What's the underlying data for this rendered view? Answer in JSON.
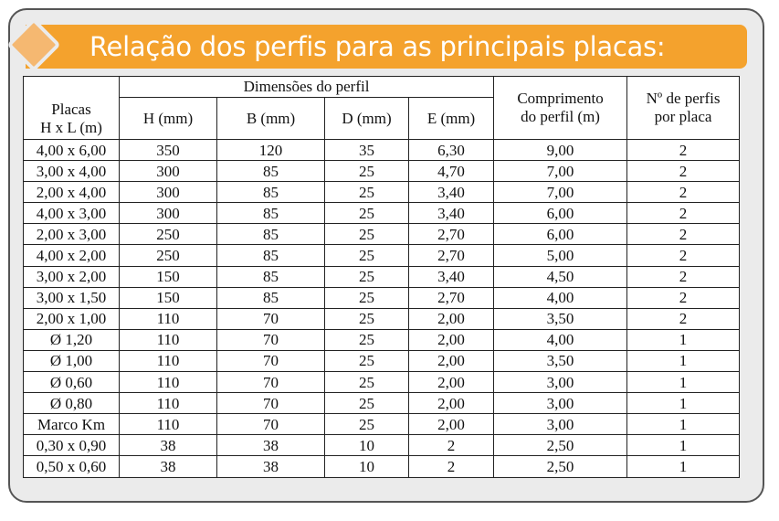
{
  "title": "Relação dos perfis para as principais placas:",
  "colors": {
    "banner": "#f4a22d",
    "diamond": "#f5b871",
    "card": "#ebebeb"
  },
  "icons": {
    "banner_mark": "diamond-icon"
  },
  "table": {
    "group_header": "Dimensões do perfil",
    "headers": {
      "placas_line1": "Placas",
      "placas_line2": "H x L (m)",
      "h": "H (mm)",
      "b": "B (mm)",
      "d": "D (mm)",
      "e": "E (mm)",
      "comprimento_line1": "Comprimento",
      "comprimento_line2": "do perfil (m)",
      "nperfis_line1": "Nº de perfis",
      "nperfis_line2": "por placa"
    },
    "rows": [
      [
        "4,00 x 6,00",
        "350",
        "120",
        "35",
        "6,30",
        "9,00",
        "2"
      ],
      [
        "3,00 x 4,00",
        "300",
        "85",
        "25",
        "4,70",
        "7,00",
        "2"
      ],
      [
        "2,00 x 4,00",
        "300",
        "85",
        "25",
        "3,40",
        "7,00",
        "2"
      ],
      [
        "4,00 x 3,00",
        "300",
        "85",
        "25",
        "3,40",
        "6,00",
        "2"
      ],
      [
        "2,00 x 3,00",
        "250",
        "85",
        "25",
        "2,70",
        "6,00",
        "2"
      ],
      [
        "4,00 x 2,00",
        "250",
        "85",
        "25",
        "2,70",
        "5,00",
        "2"
      ],
      [
        "3,00 x 2,00",
        "150",
        "85",
        "25",
        "3,40",
        "4,50",
        "2"
      ],
      [
        "3,00 x 1,50",
        "150",
        "85",
        "25",
        "2,70",
        "4,00",
        "2"
      ],
      [
        "2,00 x 1,00",
        "110",
        "70",
        "25",
        "2,00",
        "3,50",
        "2"
      ],
      [
        "Ø 1,20",
        "110",
        "70",
        "25",
        "2,00",
        "4,00",
        "1"
      ],
      [
        "Ø 1,00",
        "110",
        "70",
        "25",
        "2,00",
        "3,50",
        "1"
      ],
      [
        "Ø 0,60",
        "110",
        "70",
        "25",
        "2,00",
        "3,00",
        "1"
      ],
      [
        "Ø 0,80",
        "110",
        "70",
        "25",
        "2,00",
        "3,00",
        "1"
      ],
      [
        "Marco Km",
        "110",
        "70",
        "25",
        "2,00",
        "3,00",
        "1"
      ],
      [
        "0,30 x 0,90",
        "38",
        "38",
        "10",
        "2",
        "2,50",
        "1"
      ],
      [
        "0,50 x 0,60",
        "38",
        "38",
        "10",
        "2",
        "2,50",
        "1"
      ]
    ]
  }
}
